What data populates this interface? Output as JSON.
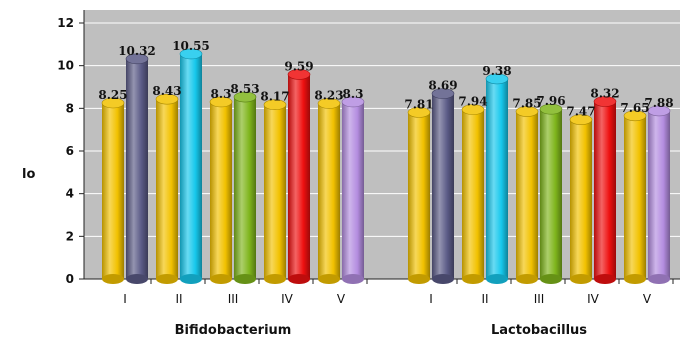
{
  "chart_data": {
    "type": "bar",
    "title": "",
    "xlabel": "",
    "ylabel": "lo",
    "ylim": [
      0,
      12
    ],
    "yticks": [
      0,
      2,
      4,
      6,
      8,
      10,
      12
    ],
    "grid": true,
    "legend": "none",
    "groups": [
      {
        "name": "Bifidobacterium",
        "categories": [
          {
            "label": "I",
            "values": [
              8.25,
              10.32
            ]
          },
          {
            "label": "II",
            "values": [
              8.43,
              10.55
            ]
          },
          {
            "label": "III",
            "values": [
              8.3,
              8.53
            ]
          },
          {
            "label": "IV",
            "values": [
              8.17,
              9.59
            ]
          },
          {
            "label": "V",
            "values": [
              8.23,
              8.3
            ]
          }
        ]
      },
      {
        "name": "Lactobacillus",
        "categories": [
          {
            "label": "I",
            "values": [
              7.81,
              8.69
            ]
          },
          {
            "label": "II",
            "values": [
              7.94,
              9.38
            ]
          },
          {
            "label": "III",
            "values": [
              7.85,
              7.96
            ]
          },
          {
            "label": "IV",
            "values": [
              7.47,
              8.32
            ]
          },
          {
            "label": "V",
            "values": [
              7.65,
              7.88
            ]
          }
        ]
      }
    ],
    "colors": {
      "first_bar": "#f2c200",
      "second_bar_by_category": [
        "#5a5a86",
        "#16c8ec",
        "#7fb51c",
        "#ee1010",
        "#b48de0"
      ],
      "plot_background": "#bfbfbf",
      "gridline": "#ffffff"
    }
  }
}
